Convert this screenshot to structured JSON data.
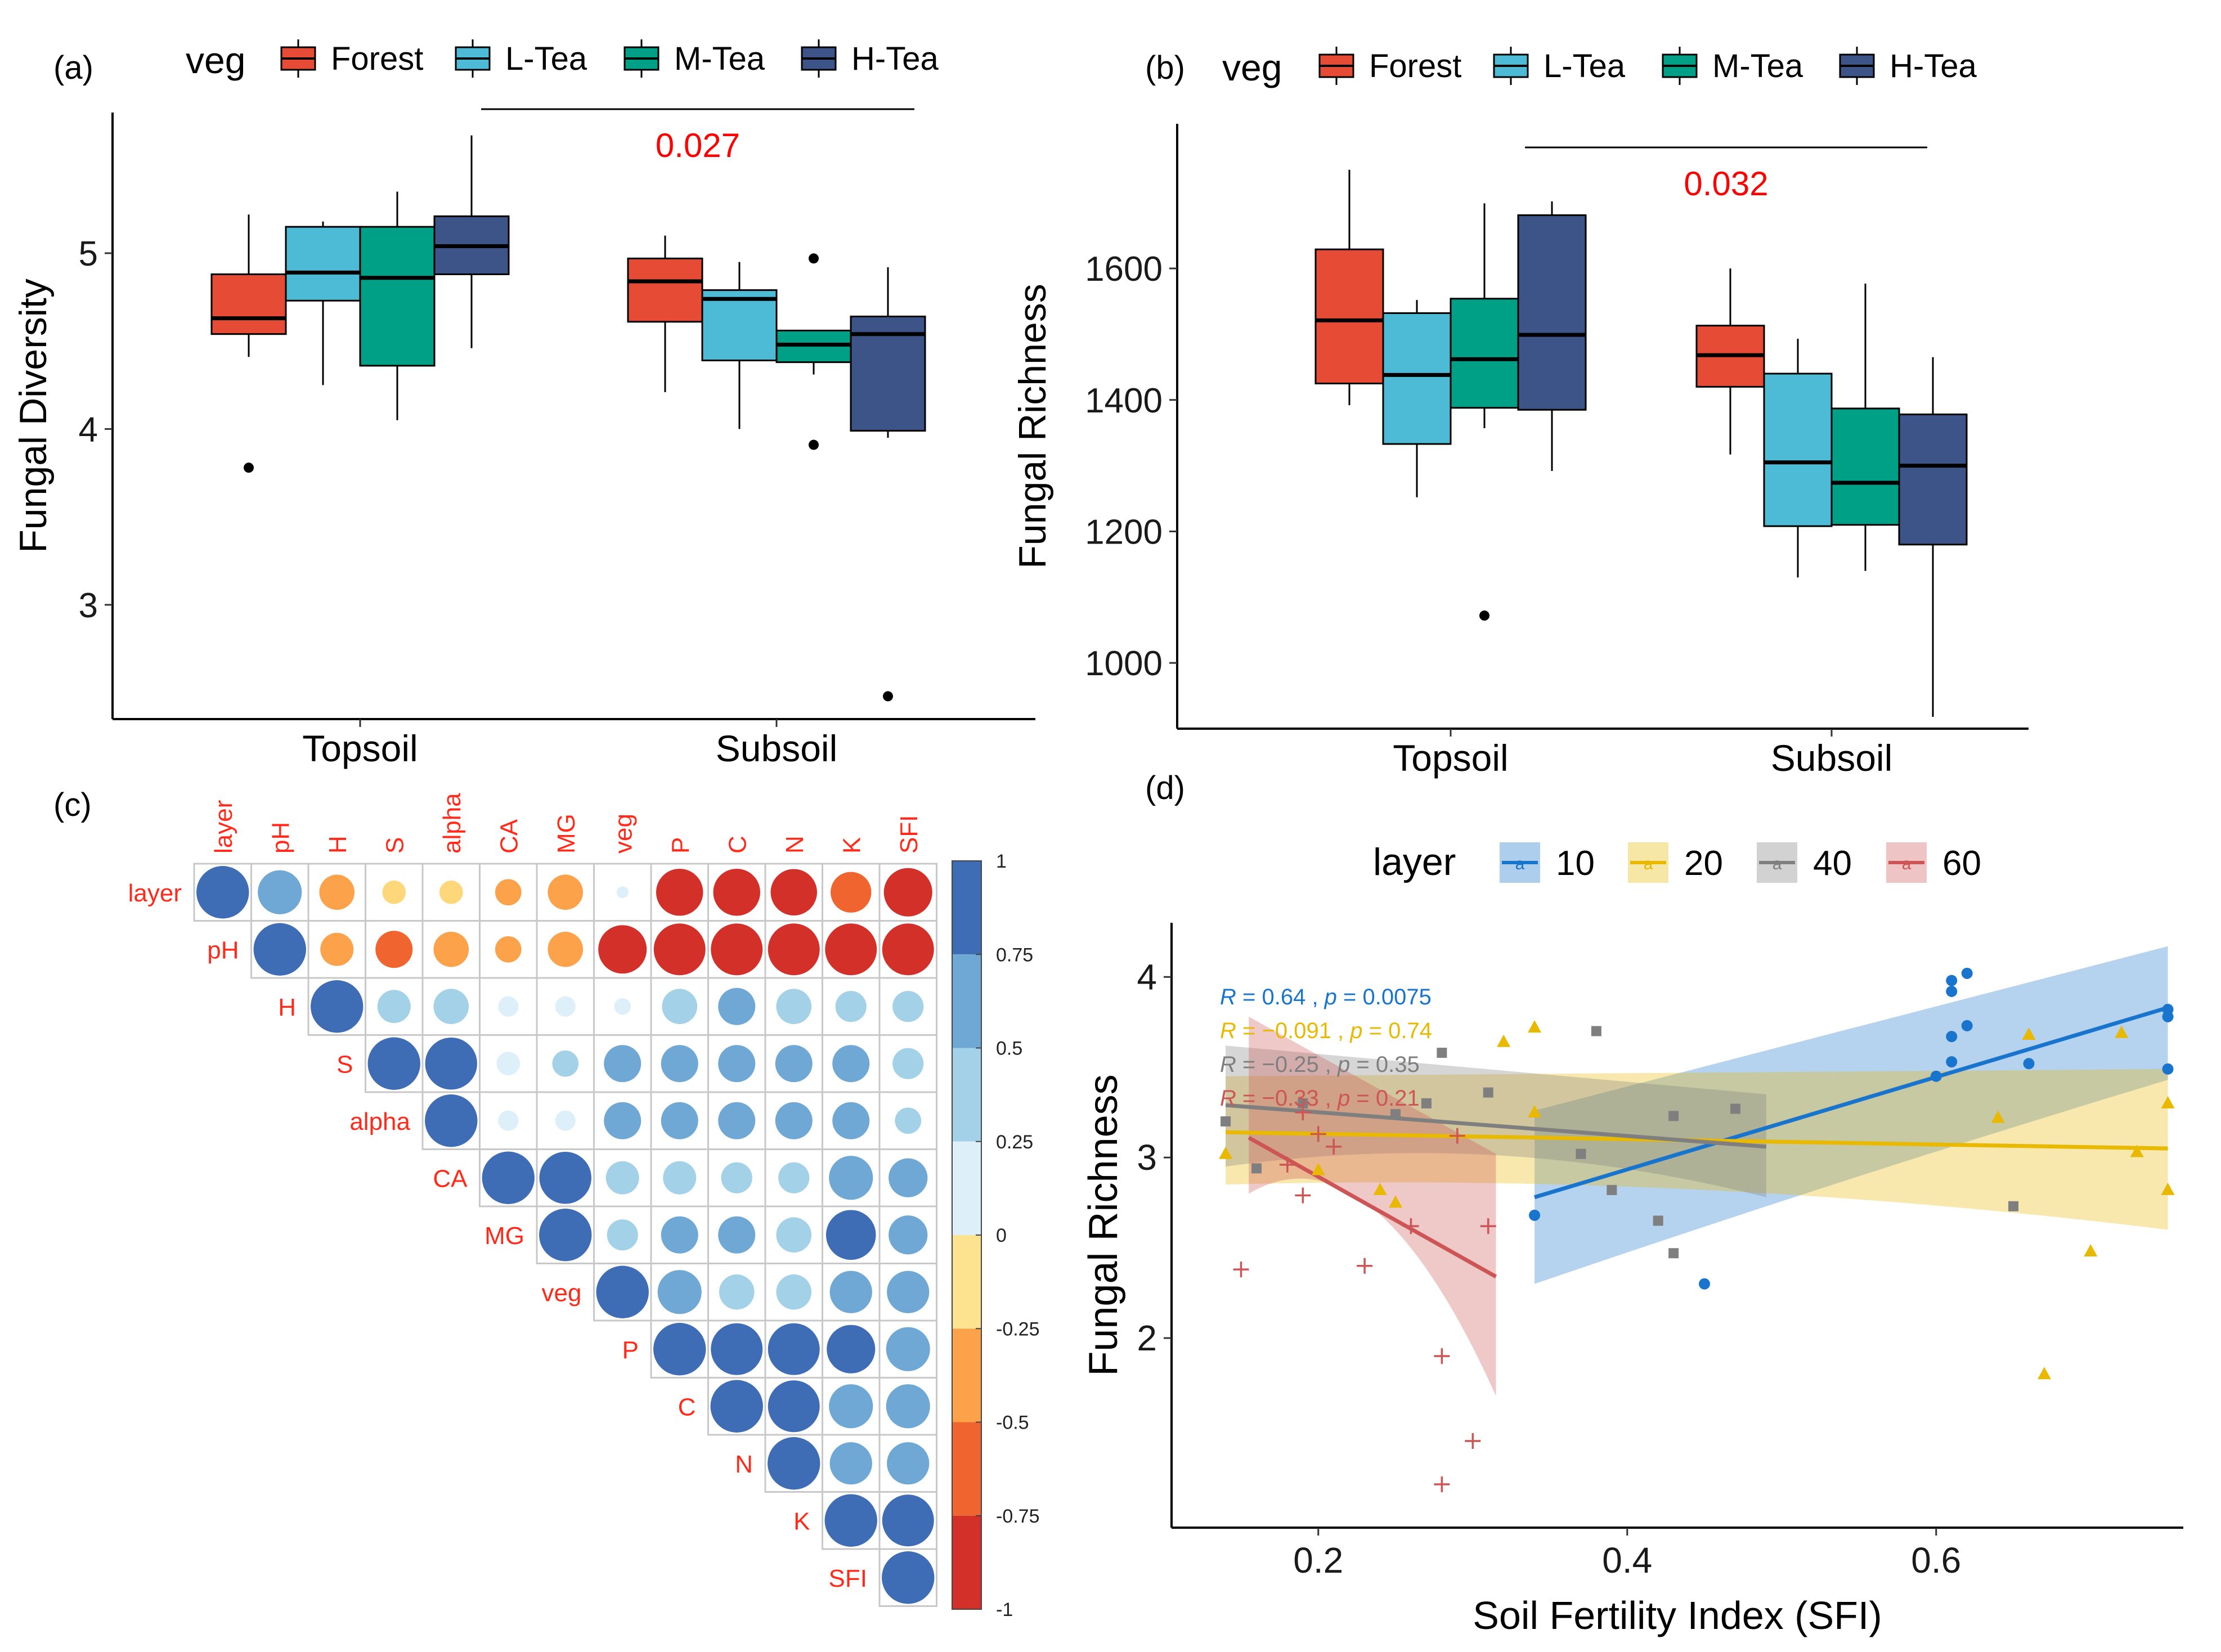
{
  "panel_labels": [
    "(a)",
    "(b)",
    "(c)",
    "(d)"
  ],
  "colors": {
    "Forest": "#E64B35",
    "L-Tea": "#4DBBD5",
    "M-Tea": "#00A087",
    "H-Tea": "#3C5488",
    "layer10": "#1874CD",
    "layer20": "#E8B900",
    "layer40": "#7F7F7F",
    "layer60": "#CD5555",
    "sig": "#FF0000",
    "corr_label": "#FF2A1A"
  },
  "chart_data": [
    {
      "type": "boxplot",
      "panel": "(a)",
      "legend_title": "veg",
      "legend": [
        "Forest",
        "L-Tea",
        "M-Tea",
        "H-Tea"
      ],
      "ylabel": "Fungal Diversity",
      "xlabel": "",
      "categories": [
        "Topsoil",
        "Subsoil"
      ],
      "ylim": [
        2.35,
        5.8
      ],
      "yticks": [
        3,
        4,
        5
      ],
      "significance": {
        "label": "0.027"
      },
      "groups": [
        {
          "category": "Topsoil",
          "veg": "Forest",
          "min": 4.41,
          "q1": 4.54,
          "median": 4.63,
          "q3": 4.88,
          "max": 5.22,
          "outliers": [
            3.78
          ]
        },
        {
          "category": "Topsoil",
          "veg": "L-Tea",
          "min": 4.25,
          "q1": 4.73,
          "median": 4.89,
          "q3": 5.15,
          "max": 5.18,
          "outliers": []
        },
        {
          "category": "Topsoil",
          "veg": "M-Tea",
          "min": 4.05,
          "q1": 4.36,
          "median": 4.86,
          "q3": 5.15,
          "max": 5.35,
          "outliers": []
        },
        {
          "category": "Topsoil",
          "veg": "H-Tea",
          "min": 4.46,
          "q1": 4.88,
          "median": 5.04,
          "q3": 5.21,
          "max": 5.67,
          "outliers": []
        },
        {
          "category": "Subsoil",
          "veg": "Forest",
          "min": 4.21,
          "q1": 4.61,
          "median": 4.84,
          "q3": 4.97,
          "max": 5.1,
          "outliers": []
        },
        {
          "category": "Subsoil",
          "veg": "L-Tea",
          "min": 4.0,
          "q1": 4.39,
          "median": 4.74,
          "q3": 4.79,
          "max": 4.95,
          "outliers": []
        },
        {
          "category": "Subsoil",
          "veg": "M-Tea",
          "min": 4.31,
          "q1": 4.38,
          "median": 4.48,
          "q3": 4.56,
          "max": 4.56,
          "outliers": [
            4.97,
            3.91
          ]
        },
        {
          "category": "Subsoil",
          "veg": "H-Tea",
          "min": 3.95,
          "q1": 3.99,
          "median": 4.54,
          "q3": 4.64,
          "max": 4.92,
          "outliers": [
            2.48
          ]
        }
      ]
    },
    {
      "type": "boxplot",
      "panel": "(b)",
      "legend_title": "veg",
      "legend": [
        "Forest",
        "L-Tea",
        "M-Tea",
        "H-Tea"
      ],
      "ylabel": "Fungal Richness",
      "xlabel": "",
      "categories": [
        "Topsoil",
        "Subsoil"
      ],
      "ylim": [
        900,
        1820
      ],
      "yticks": [
        1000,
        1200,
        1400,
        1600
      ],
      "significance": {
        "label": "0.032"
      },
      "groups": [
        {
          "category": "Topsoil",
          "veg": "Forest",
          "min": 1392,
          "q1": 1425,
          "median": 1521,
          "q3": 1629,
          "max": 1750,
          "outliers": []
        },
        {
          "category": "Topsoil",
          "veg": "L-Tea",
          "min": 1252,
          "q1": 1333,
          "median": 1438,
          "q3": 1532,
          "max": 1552,
          "outliers": []
        },
        {
          "category": "Topsoil",
          "veg": "M-Tea",
          "min": 1357,
          "q1": 1388,
          "median": 1462,
          "q3": 1554,
          "max": 1699,
          "outliers": [
            1072
          ]
        },
        {
          "category": "Topsoil",
          "veg": "H-Tea",
          "min": 1292,
          "q1": 1385,
          "median": 1499,
          "q3": 1681,
          "max": 1702,
          "outliers": []
        },
        {
          "category": "Subsoil",
          "veg": "Forest",
          "min": 1317,
          "q1": 1420,
          "median": 1468,
          "q3": 1513,
          "max": 1600,
          "outliers": []
        },
        {
          "category": "Subsoil",
          "veg": "L-Tea",
          "min": 1130,
          "q1": 1208,
          "median": 1305,
          "q3": 1440,
          "max": 1493,
          "outliers": []
        },
        {
          "category": "Subsoil",
          "veg": "M-Tea",
          "min": 1140,
          "q1": 1210,
          "median": 1274,
          "q3": 1387,
          "max": 1577,
          "outliers": []
        },
        {
          "category": "Subsoil",
          "veg": "H-Tea",
          "min": 918,
          "q1": 1180,
          "median": 1300,
          "q3": 1378,
          "max": 1465,
          "outliers": []
        }
      ]
    },
    {
      "type": "heatmap",
      "panel": "(c)",
      "variables": [
        "layer",
        "pH",
        "H",
        "S",
        "alpha",
        "CA",
        "MG",
        "veg",
        "P",
        "C",
        "N",
        "K",
        "SFI"
      ],
      "colorbar_ticks": [
        "1",
        "0.75",
        "0.5",
        "0.25",
        "0",
        "-0.25",
        "-0.5",
        "-0.75",
        "-1"
      ],
      "matrix_upper": [
        [
          1,
          0.7,
          -0.45,
          -0.2,
          -0.2,
          -0.25,
          -0.45,
          0.05,
          -0.8,
          -0.8,
          -0.78,
          -0.6,
          -0.85
        ],
        [
          null,
          1,
          -0.4,
          -0.5,
          -0.45,
          -0.25,
          -0.45,
          -0.85,
          -0.97,
          -0.97,
          -0.97,
          -0.97,
          -0.97
        ],
        [
          null,
          null,
          1,
          0.4,
          0.45,
          0.15,
          0.15,
          0.1,
          0.45,
          0.5,
          0.45,
          0.35,
          0.35
        ],
        [
          null,
          null,
          null,
          1,
          0.98,
          0.2,
          0.25,
          0.5,
          0.5,
          0.5,
          0.5,
          0.5,
          0.35
        ],
        [
          null,
          null,
          null,
          null,
          1,
          0.15,
          0.15,
          0.5,
          0.5,
          0.5,
          0.5,
          0.5,
          0.25
        ],
        [
          null,
          null,
          null,
          null,
          null,
          1,
          0.98,
          0.4,
          0.4,
          0.35,
          0.35,
          0.7,
          0.55
        ],
        [
          null,
          null,
          null,
          null,
          null,
          null,
          1,
          0.35,
          0.5,
          0.5,
          0.45,
          0.9,
          0.55
        ],
        [
          null,
          null,
          null,
          null,
          null,
          null,
          null,
          1,
          0.7,
          0.45,
          0.45,
          0.65,
          0.65
        ],
        [
          null,
          null,
          null,
          null,
          null,
          null,
          null,
          null,
          1,
          0.97,
          0.97,
          0.85,
          0.7
        ],
        [
          null,
          null,
          null,
          null,
          null,
          null,
          null,
          null,
          null,
          1,
          0.97,
          0.7,
          0.7
        ],
        [
          null,
          null,
          null,
          null,
          null,
          null,
          null,
          null,
          null,
          null,
          1,
          0.65,
          0.65
        ],
        [
          null,
          null,
          null,
          null,
          null,
          null,
          null,
          null,
          null,
          null,
          null,
          1,
          0.97
        ],
        [
          null,
          null,
          null,
          null,
          null,
          null,
          null,
          null,
          null,
          null,
          null,
          null,
          1
        ]
      ]
    },
    {
      "type": "scatter",
      "panel": "(d)",
      "legend_title": "layer",
      "legend": [
        "10",
        "20",
        "40",
        "60"
      ],
      "legend_glyph": "a",
      "xlabel": "Soil Fertility Index (SFI)",
      "ylabel": "Fungal Richness",
      "xlim": [
        0.105,
        0.76
      ],
      "ylim": [
        0.95,
        4.3
      ],
      "xticks": [
        0.2,
        0.4,
        0.6
      ],
      "yticks": [
        2,
        3,
        4
      ],
      "stats": [
        {
          "layer": "10",
          "R": "0.64",
          "p": "0.0075"
        },
        {
          "layer": "20",
          "R": "−0.091",
          "p": "0.74"
        },
        {
          "layer": "40",
          "R": "−0.25",
          "p": "0.35"
        },
        {
          "layer": "60",
          "R": "−0.33",
          "p": "0.21"
        }
      ],
      "series": [
        {
          "name": "10",
          "marker": "circle",
          "fit": {
            "x": [
              0.34,
              0.75
            ],
            "y": [
              2.78,
              3.83
            ]
          },
          "band_lo": [
            2.3,
            3.43
          ],
          "band_hi": [
            3.26,
            4.17
          ],
          "band_mid": [
            2.9,
            3.22
          ],
          "points": [
            [
              0.34,
              2.68
            ],
            [
              0.45,
              2.3
            ],
            [
              0.6,
              3.45
            ],
            [
              0.61,
              3.53
            ],
            [
              0.61,
              3.67
            ],
            [
              0.61,
              3.92
            ],
            [
              0.61,
              3.98
            ],
            [
              0.62,
              4.02
            ],
            [
              0.62,
              3.73
            ],
            [
              0.66,
              3.52
            ],
            [
              0.75,
              3.78
            ],
            [
              0.75,
              3.49
            ],
            [
              0.75,
              3.82
            ]
          ]
        },
        {
          "name": "20",
          "marker": "triangle",
          "fit": {
            "x": [
              0.14,
              0.75
            ],
            "y": [
              3.14,
              3.05
            ]
          },
          "band_lo": [
            2.85,
            2.6
          ],
          "band_hi": [
            3.45,
            3.49
          ],
          "band_mid": [
            2.92,
            3.2
          ],
          "points": [
            [
              0.14,
              3.02
            ],
            [
              0.2,
              2.93
            ],
            [
              0.24,
              2.82
            ],
            [
              0.25,
              2.75
            ],
            [
              0.32,
              3.64
            ],
            [
              0.34,
              3.72
            ],
            [
              0.34,
              3.25
            ],
            [
              0.64,
              3.22
            ],
            [
              0.66,
              3.68
            ],
            [
              0.67,
              1.8
            ],
            [
              0.7,
              2.48
            ],
            [
              0.72,
              3.69
            ],
            [
              0.73,
              3.03
            ],
            [
              0.75,
              3.3
            ],
            [
              0.75,
              2.82
            ]
          ]
        },
        {
          "name": "40",
          "marker": "square",
          "fit": {
            "x": [
              0.14,
              0.49
            ],
            "y": [
              3.29,
              3.06
            ]
          },
          "band_lo": [
            2.95,
            2.78
          ],
          "band_hi": [
            3.62,
            3.35
          ],
          "band_mid": [
            3.16,
            3.12
          ],
          "points": [
            [
              0.14,
              3.2
            ],
            [
              0.16,
              2.94
            ],
            [
              0.19,
              3.3
            ],
            [
              0.25,
              3.24
            ],
            [
              0.27,
              3.3
            ],
            [
              0.28,
              3.58
            ],
            [
              0.31,
              3.36
            ],
            [
              0.38,
              3.7
            ],
            [
              0.37,
              3.02
            ],
            [
              0.39,
              2.82
            ],
            [
              0.42,
              2.65
            ],
            [
              0.43,
              2.47
            ],
            [
              0.43,
              3.23
            ],
            [
              0.47,
              3.27
            ],
            [
              0.65,
              2.73
            ]
          ]
        },
        {
          "name": "60",
          "marker": "plus",
          "fit": {
            "x": [
              0.155,
              0.315
            ],
            "y": [
              3.11,
              2.34
            ]
          },
          "band_lo": [
            2.8,
            1.68
          ],
          "band_hi": [
            3.78,
            3.02
          ],
          "band_mid": [
            3.2,
            2.8
          ],
          "points": [
            [
              0.15,
              2.38
            ],
            [
              0.18,
              2.96
            ],
            [
              0.19,
              2.79
            ],
            [
              0.2,
              3.13
            ],
            [
              0.21,
              3.06
            ],
            [
              0.19,
              3.25
            ],
            [
              0.23,
              2.4
            ],
            [
              0.26,
              2.62
            ],
            [
              0.28,
              1.19
            ],
            [
              0.28,
              1.9
            ],
            [
              0.29,
              3.12
            ],
            [
              0.3,
              1.43
            ],
            [
              0.31,
              2.62
            ]
          ]
        }
      ]
    }
  ]
}
